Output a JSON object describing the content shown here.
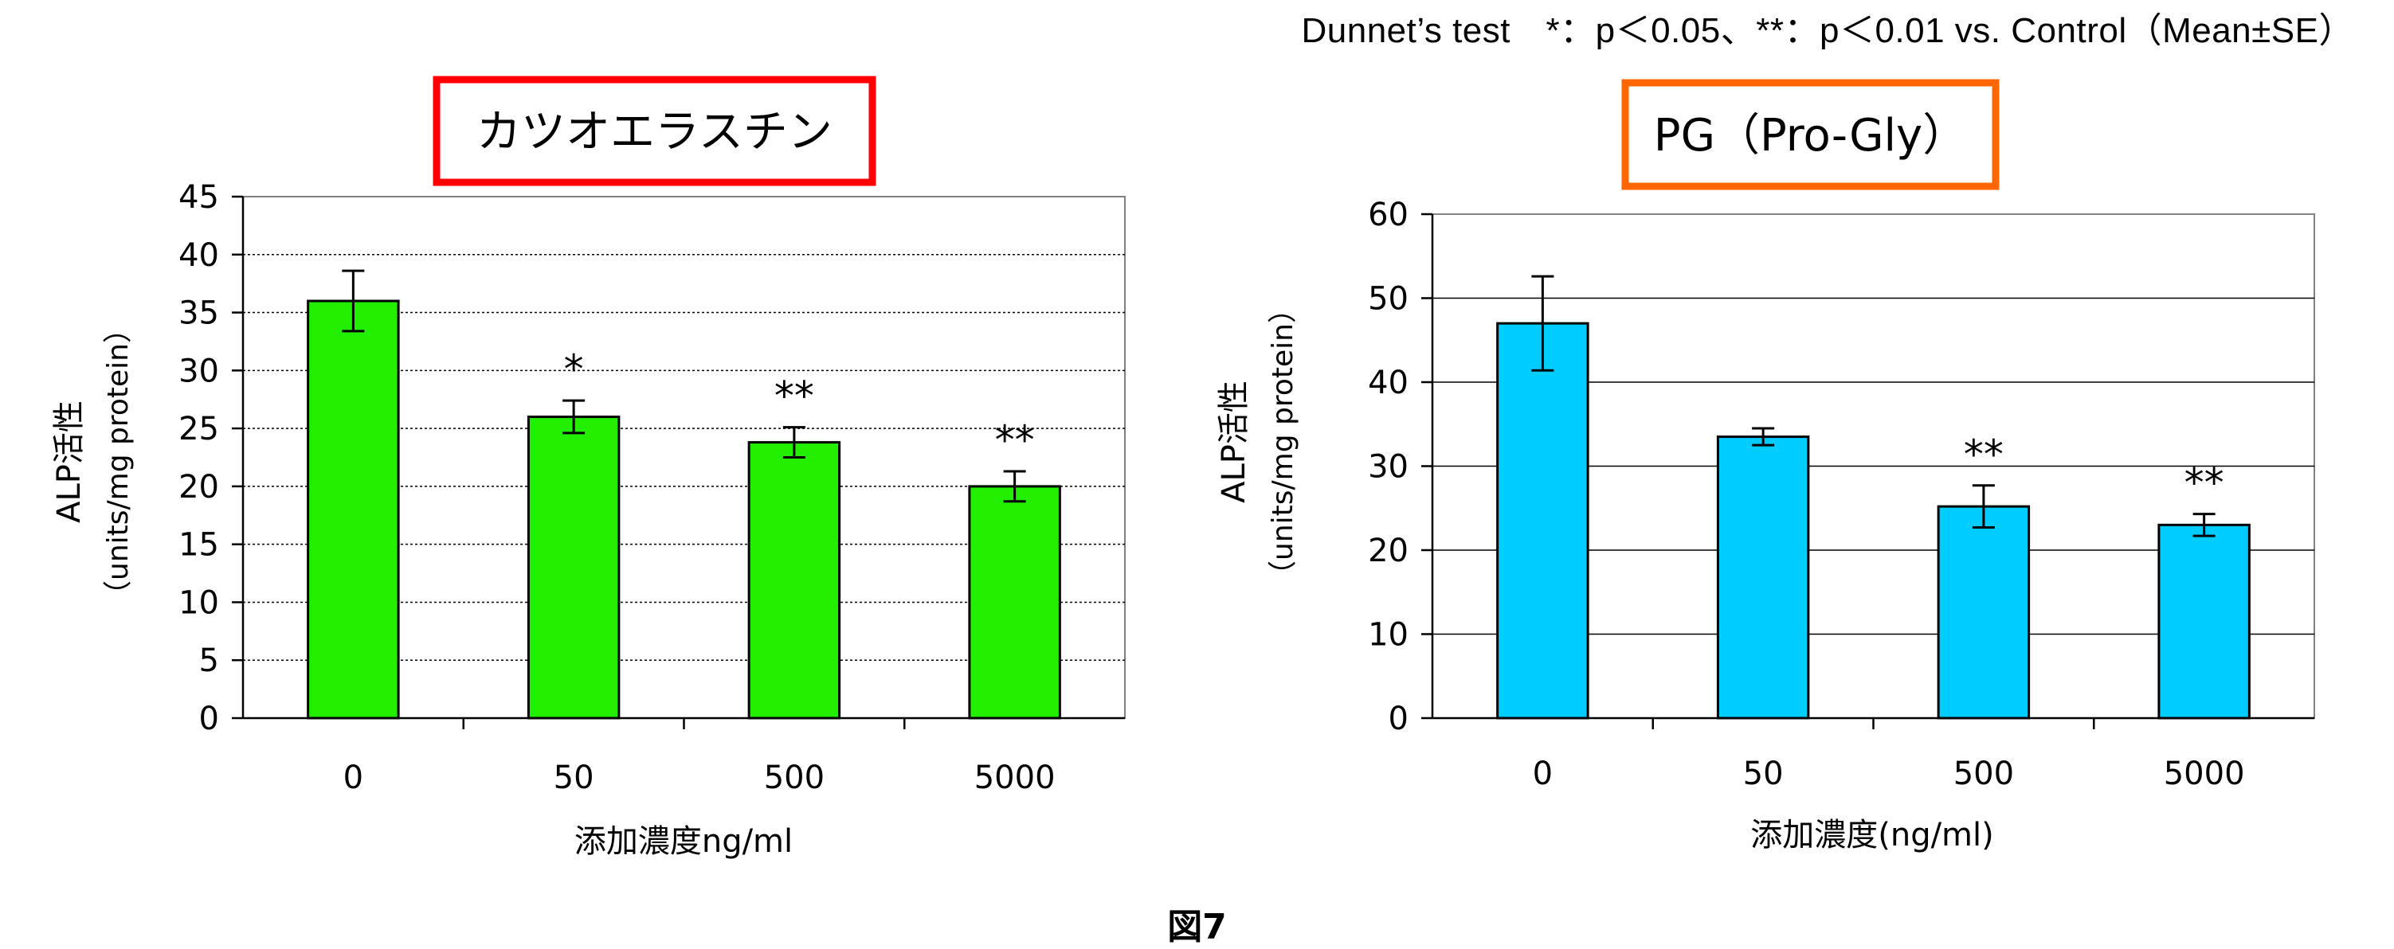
{
  "note": "Dunnet’s test　*：p＜0.05、**：p＜0.01 vs. Control（Mean±SE）",
  "figure_caption": "図7",
  "colors": {
    "left_bar": "#22ee00",
    "right_bar": "#00ccff",
    "left_box": "#ff0000",
    "right_box": "#ff6600"
  },
  "chart_data": [
    {
      "type": "bar",
      "title": "カツオエラスチン",
      "ylabel": "ALP活性",
      "ylabel_unit": "（units/mg protein）",
      "xlabel": "添加濃度ng/ml",
      "categories": [
        "0",
        "50",
        "500",
        "5000"
      ],
      "values": [
        36,
        26,
        23.8,
        20
      ],
      "errors": [
        2.6,
        1.4,
        1.3,
        1.3
      ],
      "annotations": [
        "",
        "*",
        "**",
        "**"
      ],
      "ylim": [
        0,
        45
      ],
      "yticks": [
        0,
        5,
        10,
        15,
        20,
        25,
        30,
        35,
        40,
        45
      ],
      "grid": true
    },
    {
      "type": "bar",
      "title": "PG（Pro-Gly）",
      "ylabel": "ALP活性",
      "ylabel_unit": "（units/mg protein）",
      "xlabel": "添加濃度(ng/ml)",
      "categories": [
        "0",
        "50",
        "500",
        "5000"
      ],
      "values": [
        47,
        33.5,
        25.2,
        23
      ],
      "errors": [
        5.6,
        1,
        2.5,
        1.3
      ],
      "annotations": [
        "",
        "",
        "**",
        "**"
      ],
      "ylim": [
        0,
        60
      ],
      "yticks": [
        0,
        10,
        20,
        30,
        40,
        50,
        60
      ],
      "grid": true
    }
  ]
}
